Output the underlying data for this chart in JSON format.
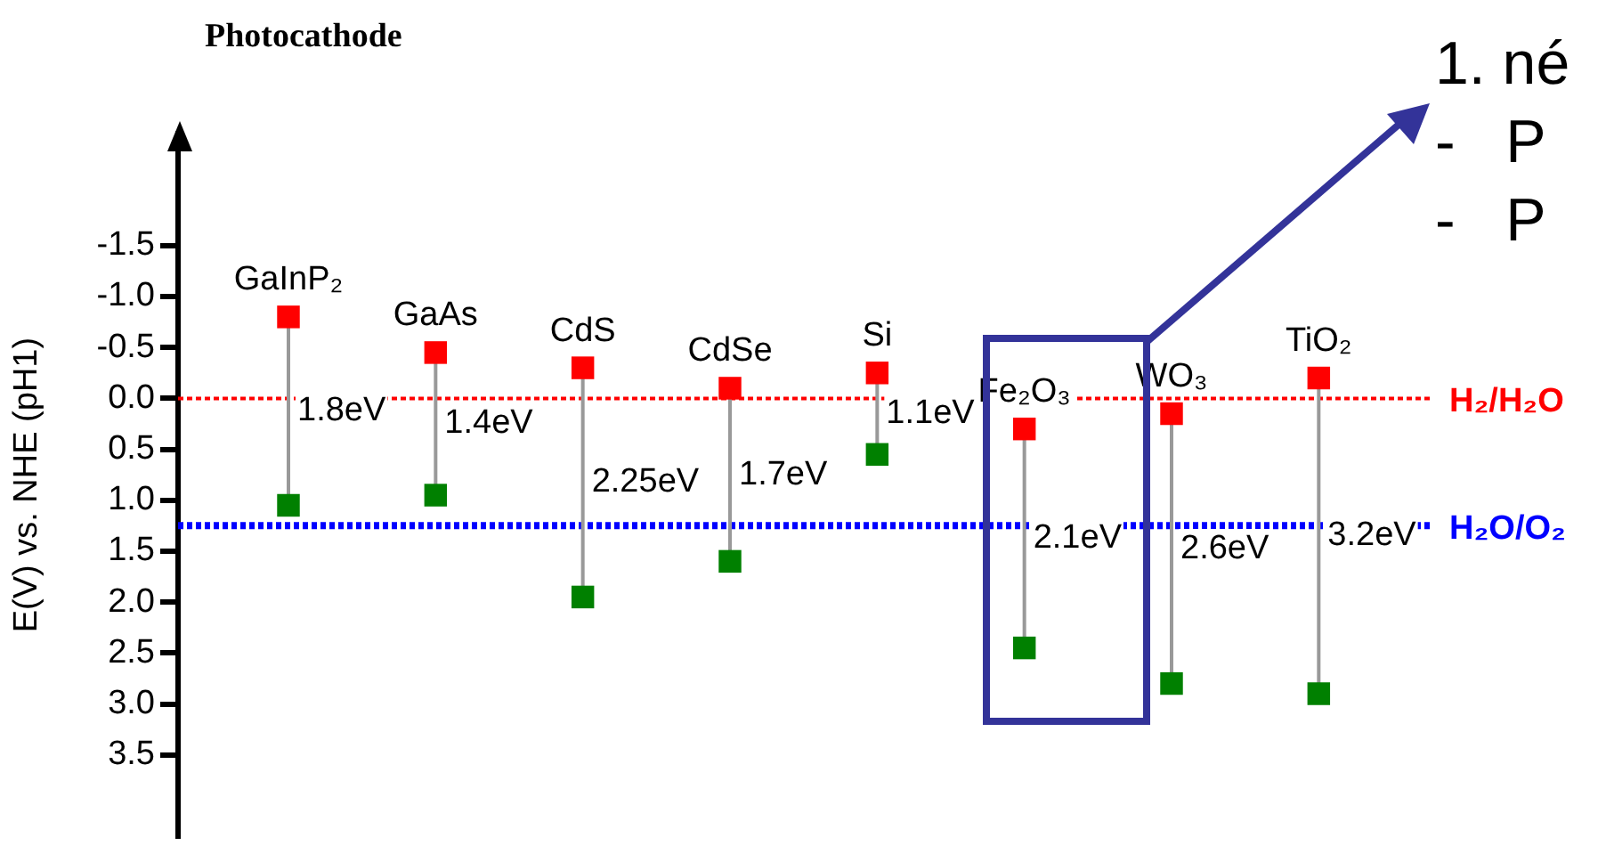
{
  "chart_data": {
    "type": "scatter",
    "title": "Photocathode",
    "ylabel": "E(V) vs. NHE (pH1)",
    "categories": [
      "GaInP₂",
      "GaAs",
      "CdS",
      "CdSe",
      "Si",
      "Fe₂O₃",
      "WO₃",
      "TiO₂"
    ],
    "series": [
      {
        "color": "#ff0000",
        "values": [
          -0.8,
          -0.45,
          -0.3,
          -0.1,
          -0.25,
          0.3,
          0.15,
          -0.2
        ]
      },
      {
        "color": "#008000",
        "values": [
          1.05,
          0.95,
          1.95,
          1.6,
          0.55,
          2.45,
          2.8,
          2.9
        ]
      }
    ],
    "marker": "square",
    "ylim": [
      4.3,
      -2.6
    ],
    "yticks": [
      -1.5,
      {
        "value": -1,
        "label": "-1.0"
      },
      -0.5,
      {
        "value": 0,
        "label": "0.0"
      },
      0.5,
      {
        "value": 1,
        "label": "1.0"
      },
      1.5,
      {
        "value": 2,
        "label": "2.0"
      },
      2.5,
      {
        "value": 3,
        "label": "3.0"
      },
      3.5
    ],
    "ref_lines": [
      {
        "axis": "y",
        "value": 0,
        "label": "H₂/H₂O",
        "color": "#ff0000",
        "line_style": "dotted"
      },
      {
        "axis": "y",
        "value": 1.25,
        "label": "H₂O/O₂",
        "color": "#0000ff",
        "line_style": "dotted"
      }
    ],
    "annotations": [
      "1.8eV",
      "1.4eV",
      "2.25eV",
      "1.7eV",
      "1.1eV",
      "2.1eV",
      "2.6eV",
      "3.2eV",
      "1. né",
      "-   P",
      "-   P"
    ],
    "grid": false,
    "legend": false
  }
}
